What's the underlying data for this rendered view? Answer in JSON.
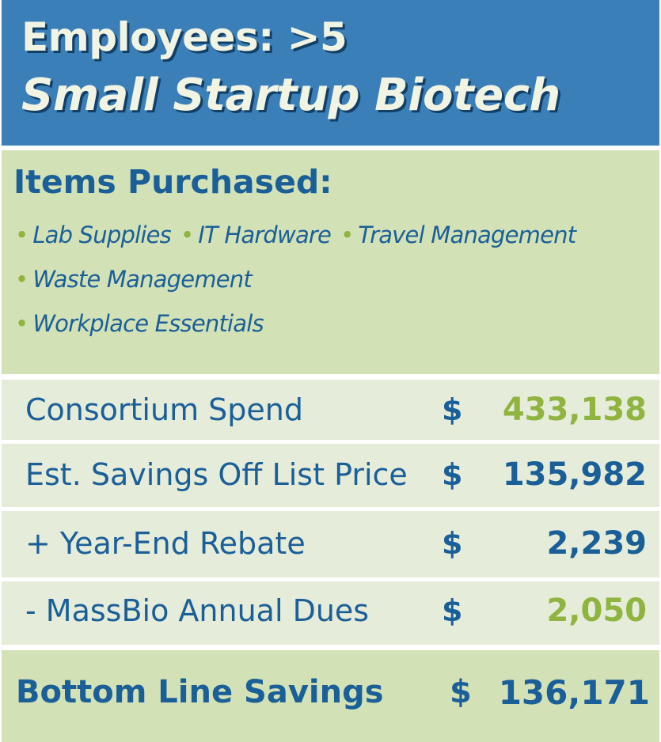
{
  "header": {
    "line1": "Employees: >5",
    "line2": "Small Startup Biotech"
  },
  "items": {
    "title": "Items Purchased:",
    "list": [
      "Lab Supplies",
      "IT Hardware",
      "Travel Management",
      "Waste Management",
      "Workplace Essentials"
    ],
    "bullet": "•"
  },
  "rows": [
    {
      "label": "Consortium Spend",
      "currency": "$",
      "amount": "433,138",
      "amount_color": "#8fb43f"
    },
    {
      "label": "Est. Savings Off List Price",
      "currency": "$",
      "amount": "135,982",
      "amount_color": "#1b5f98"
    },
    {
      "label": "+ Year-End Rebate",
      "currency": "$",
      "amount": "2,239",
      "amount_color": "#1b5f98"
    },
    {
      "label": "- MassBio Annual Dues",
      "currency": "$",
      "amount": "2,050",
      "amount_color": "#8fb43f"
    }
  ],
  "total": {
    "label": "Bottom Line Savings",
    "currency": "$",
    "amount": "136,171"
  },
  "colors": {
    "header_bg": "#3a7fb8",
    "header_text": "#f1f4e3",
    "panel_green": "#d3e2b6",
    "row_light": "#e5ecd9",
    "text_blue": "#1b5f98",
    "accent_green": "#8fb43f"
  }
}
